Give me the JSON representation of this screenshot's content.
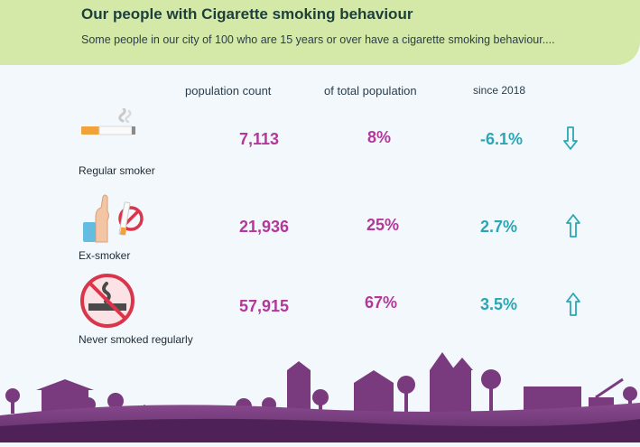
{
  "header": {
    "title": "Our people with Cigarette smoking behaviour",
    "subtitle": "Some people in our city of 100 who are 15 years or over have a cigarette smoking behaviour...."
  },
  "columns": {
    "count": "population count",
    "share": "of total population",
    "change": "since 2018"
  },
  "rows": [
    {
      "label": "Regular smoker",
      "count": "7,113",
      "share": "8%",
      "change": "-6.1%",
      "direction": "down",
      "icon": "cigarette-icon"
    },
    {
      "label": "Ex-smoker",
      "count": "21,936",
      "share": "25%",
      "change": "2.7%",
      "direction": "up",
      "icon": "refuse-cigarette-hand-icon"
    },
    {
      "label": "Never smoked regularly",
      "count": "57,915",
      "share": "67%",
      "change": "3.5%",
      "direction": "up",
      "icon": "no-smoking-icon"
    }
  ],
  "colors": {
    "header_bg": "#d4e8a8",
    "value_magenta": "#b3389a",
    "trend_teal": "#2aa7b4",
    "skyline_purple": "#7a3a7e"
  }
}
